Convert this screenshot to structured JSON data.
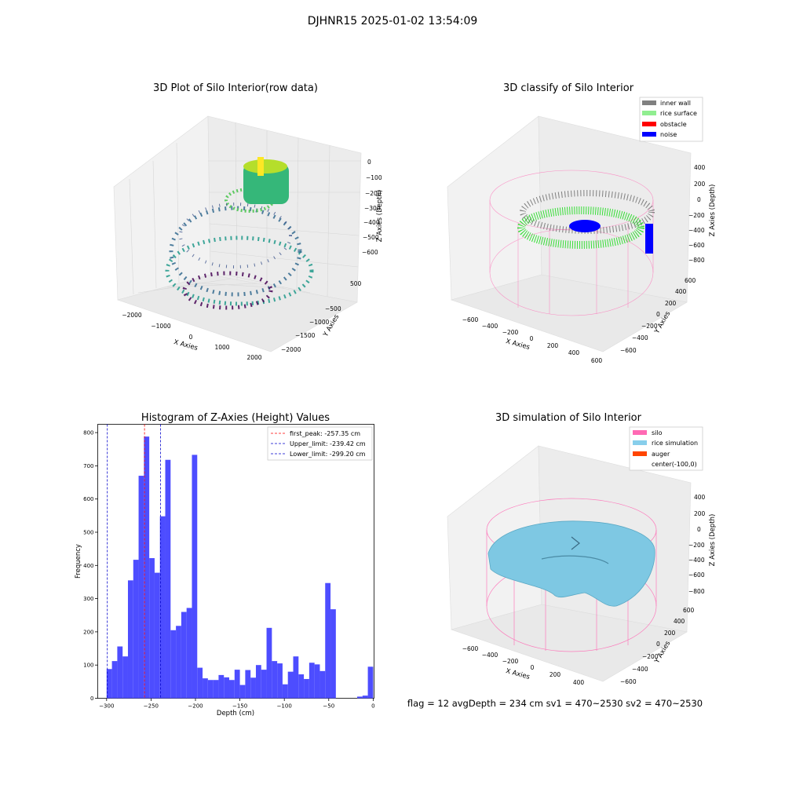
{
  "suptitle": "DJHNR15 2025-01-02 13:54:09",
  "status_line": "flag = 12   avgDepth = 234 cm  sv1 = 470~2530  sv2 = 470~2530",
  "colors": {
    "hist_bar": "#4d4dff",
    "peak_line": "#ff0000",
    "limit_line": "#0000cc",
    "silo": "#ff69b4",
    "rice_sim": "#87ceeb",
    "auger": "#ff4500",
    "inner_wall": "#808080",
    "rice_surface": "#90ee90",
    "obstacle": "#ff0000",
    "noise": "#0000ff"
  },
  "panels": {
    "raw": {
      "title": "3D Plot of Silo Interior(row data)",
      "xlabel": "X Axies",
      "ylabel": "Y Axies",
      "zlabel": "Z Axies (Depth)",
      "xticks": [
        "−2000",
        "−1000",
        "0",
        "1000",
        "2000"
      ],
      "yticks": [
        "500",
        "−500",
        "−1000",
        "−1500",
        "−2000"
      ],
      "zticks": [
        "0",
        "−100",
        "−200",
        "−300",
        "−400",
        "−500",
        "−600"
      ]
    },
    "classify": {
      "title": "3D classify of Silo Interior",
      "xlabel": "X Axies",
      "ylabel": "Y Axies",
      "zlabel": "Z Axies (Depth)",
      "xticks": [
        "−600",
        "−400",
        "−200",
        "0",
        "200",
        "400",
        "600"
      ],
      "yticks": [
        "600",
        "400",
        "200",
        "0",
        "−200",
        "−400",
        "−600"
      ],
      "zticks": [
        "400",
        "200",
        "0",
        "−200",
        "−400",
        "−600",
        "−800"
      ],
      "legend": [
        "inner wall",
        "rice surface",
        "obstacle",
        "noise"
      ]
    },
    "simulation": {
      "title": "3D simulation of Silo Interior",
      "xlabel": "X Axies",
      "ylabel": "Y Axies",
      "zlabel": "Z Axies (Depth)",
      "xticks": [
        "−600",
        "−400",
        "−200",
        "0",
        "200",
        "400"
      ],
      "yticks": [
        "600",
        "400",
        "200",
        "0",
        "−200",
        "−400",
        "−600"
      ],
      "zticks": [
        "400",
        "200",
        "0",
        "−200",
        "−400",
        "−600",
        "−800"
      ],
      "legend": [
        "silo",
        "rice simulation",
        "auger",
        "center(-100,0)"
      ]
    }
  },
  "chart_data": {
    "type": "bar",
    "title": "Histogram of Z-Axies (Height) Values",
    "xlabel": "Depth (cm)",
    "ylabel": "Frequency",
    "xlim": [
      -310,
      1
    ],
    "ylim": [
      0,
      825
    ],
    "xticks": [
      -300,
      -250,
      -200,
      -150,
      -100,
      -50,
      0
    ],
    "yticks": [
      0,
      100,
      200,
      300,
      400,
      500,
      600,
      700,
      800
    ],
    "bin_start": -300,
    "bin_width": 6,
    "values": [
      88,
      112,
      156,
      126,
      355,
      417,
      670,
      788,
      422,
      378,
      548,
      718,
      205,
      218,
      260,
      272,
      733,
      92,
      60,
      55,
      55,
      70,
      63,
      55,
      86,
      40,
      85,
      62,
      100,
      86,
      212,
      112,
      105,
      42,
      80,
      126,
      72,
      58,
      107,
      102,
      82,
      347,
      268,
      0,
      0,
      0,
      0,
      5,
      8,
      95
    ],
    "vlines": [
      {
        "label": "first_peak: -257.35 cm",
        "x": -257.35,
        "color": "#ff0000"
      },
      {
        "label": "Upper_limit: -239.42 cm",
        "x": -239.42,
        "color": "#0000cc"
      },
      {
        "label": "Lower_limit: -299.20 cm",
        "x": -299.2,
        "color": "#0000cc"
      }
    ]
  }
}
